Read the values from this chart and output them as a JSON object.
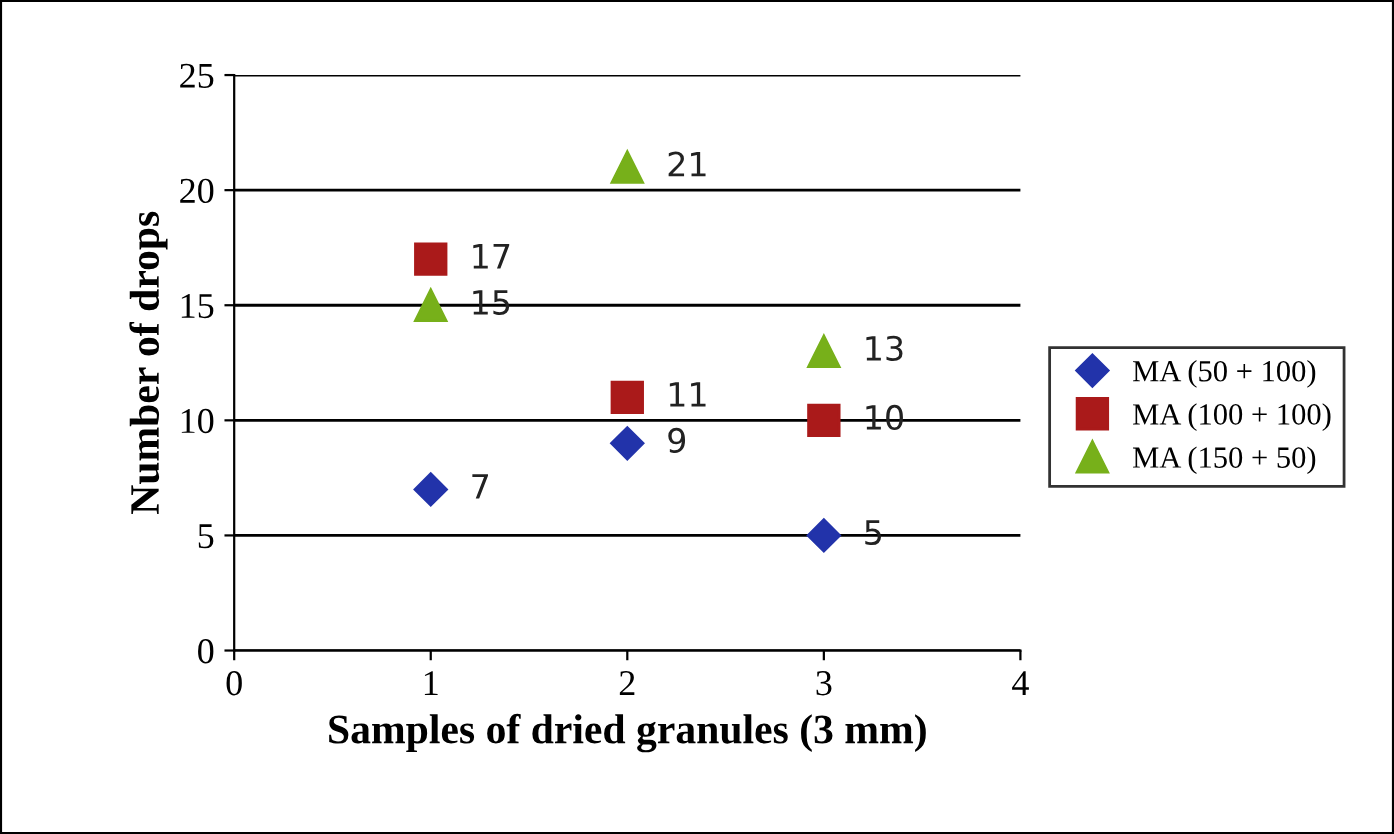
{
  "chart_data": {
    "type": "scatter",
    "xlabel": "Samples of dried granules (3 mm)",
    "ylabel": "Number of drops",
    "xlim": [
      0,
      4
    ],
    "xticks": [
      0,
      1,
      2,
      3,
      4
    ],
    "ylim": [
      0,
      25
    ],
    "yticks": [
      0,
      5,
      10,
      15,
      20,
      25
    ],
    "grid": "y",
    "legend": "right",
    "data_labels": true,
    "series": [
      {
        "name": "MA (50 + 100)",
        "color": "#2233aa",
        "marker": "diamond",
        "x": [
          1,
          2,
          3
        ],
        "values": [
          7,
          9,
          5
        ]
      },
      {
        "name": "MA (100 + 100)",
        "color": "#aa1a1a",
        "marker": "square",
        "x": [
          1,
          2,
          3
        ],
        "values": [
          17,
          11,
          10
        ]
      },
      {
        "name": "MA (150 + 50)",
        "color": "#77b01a",
        "marker": "triangle",
        "x": [
          1,
          2,
          3
        ],
        "values": [
          15,
          21,
          13
        ]
      }
    ]
  }
}
